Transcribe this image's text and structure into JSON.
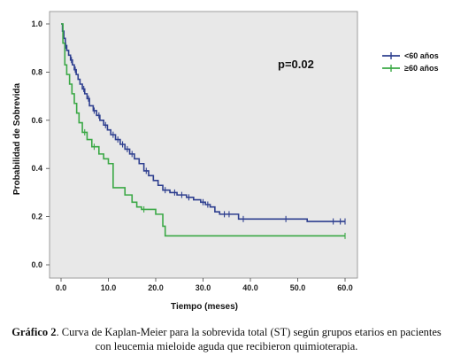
{
  "chart_data": {
    "type": "line",
    "step": true,
    "xlabel": "Tiempo (meses)",
    "ylabel": "Probabilidad de Sobrevida",
    "xlim": [
      0,
      60
    ],
    "ylim": [
      0,
      1
    ],
    "xticks": [
      "0.0",
      "10.0",
      "20.0",
      "30.0",
      "40.0",
      "50.0",
      "60.0"
    ],
    "yticks": [
      "0.0",
      "0.2",
      "0.4",
      "0.6",
      "0.8",
      "1.0"
    ],
    "xtick_values": [
      0,
      10,
      20,
      30,
      40,
      50,
      60
    ],
    "ytick_values": [
      0,
      0.2,
      0.4,
      0.6,
      0.8,
      1.0
    ],
    "annotation": "p=0.02",
    "legend_position": "right",
    "background": "#e8e8e8",
    "series": [
      {
        "name": "<60 años",
        "color": "#2e3f8f",
        "points": [
          [
            0,
            1.0
          ],
          [
            0.3,
            0.97
          ],
          [
            0.6,
            0.94
          ],
          [
            0.9,
            0.91
          ],
          [
            1.2,
            0.89
          ],
          [
            1.6,
            0.87
          ],
          [
            2.0,
            0.85
          ],
          [
            2.4,
            0.83
          ],
          [
            2.8,
            0.81
          ],
          [
            3.2,
            0.79
          ],
          [
            3.6,
            0.77
          ],
          [
            4.0,
            0.75
          ],
          [
            4.5,
            0.73
          ],
          [
            5.0,
            0.71
          ],
          [
            5.5,
            0.69
          ],
          [
            6.0,
            0.66
          ],
          [
            6.8,
            0.64
          ],
          [
            7.5,
            0.62
          ],
          [
            8.2,
            0.6
          ],
          [
            9.0,
            0.58
          ],
          [
            9.8,
            0.56
          ],
          [
            10.5,
            0.54
          ],
          [
            11.5,
            0.52
          ],
          [
            12.5,
            0.5
          ],
          [
            13.5,
            0.48
          ],
          [
            14.5,
            0.46
          ],
          [
            15.5,
            0.44
          ],
          [
            16.5,
            0.42
          ],
          [
            17.5,
            0.39
          ],
          [
            18.5,
            0.37
          ],
          [
            19.5,
            0.35
          ],
          [
            20.5,
            0.33
          ],
          [
            21.5,
            0.31
          ],
          [
            23.0,
            0.3
          ],
          [
            24.5,
            0.29
          ],
          [
            26.5,
            0.28
          ],
          [
            28.0,
            0.27
          ],
          [
            29.5,
            0.26
          ],
          [
            30.5,
            0.25
          ],
          [
            31.5,
            0.24
          ],
          [
            32.5,
            0.22
          ],
          [
            33.5,
            0.21
          ],
          [
            36.0,
            0.21
          ],
          [
            37.5,
            0.19
          ],
          [
            45.0,
            0.19
          ],
          [
            50.0,
            0.19
          ],
          [
            52.0,
            0.18
          ],
          [
            60.0,
            0.18
          ]
        ],
        "censored": [
          [
            1.0,
            0.91
          ],
          [
            2.2,
            0.85
          ],
          [
            3.0,
            0.81
          ],
          [
            4.8,
            0.73
          ],
          [
            5.8,
            0.69
          ],
          [
            7.0,
            0.64
          ],
          [
            8.0,
            0.62
          ],
          [
            9.4,
            0.58
          ],
          [
            11.0,
            0.54
          ],
          [
            12.0,
            0.52
          ],
          [
            13.0,
            0.5
          ],
          [
            14.0,
            0.48
          ],
          [
            15.0,
            0.46
          ],
          [
            18.0,
            0.39
          ],
          [
            22.0,
            0.31
          ],
          [
            24.0,
            0.3
          ],
          [
            25.5,
            0.29
          ],
          [
            27.0,
            0.28
          ],
          [
            30.0,
            0.26
          ],
          [
            31.0,
            0.25
          ],
          [
            34.5,
            0.21
          ],
          [
            35.5,
            0.21
          ],
          [
            38.5,
            0.19
          ],
          [
            47.5,
            0.19
          ],
          [
            57.5,
            0.18
          ],
          [
            59.0,
            0.18
          ],
          [
            60.0,
            0.18
          ]
        ]
      },
      {
        "name": "≥60 años",
        "color": "#3aa845",
        "points": [
          [
            0,
            1.0
          ],
          [
            0.4,
            0.92
          ],
          [
            0.8,
            0.83
          ],
          [
            1.2,
            0.79
          ],
          [
            1.8,
            0.75
          ],
          [
            2.3,
            0.71
          ],
          [
            2.8,
            0.67
          ],
          [
            3.3,
            0.63
          ],
          [
            3.8,
            0.59
          ],
          [
            4.5,
            0.55
          ],
          [
            5.5,
            0.52
          ],
          [
            6.5,
            0.49
          ],
          [
            8.0,
            0.46
          ],
          [
            9.0,
            0.44
          ],
          [
            10.0,
            0.42
          ],
          [
            11.0,
            0.32
          ],
          [
            13.5,
            0.29
          ],
          [
            15.0,
            0.26
          ],
          [
            16.0,
            0.24
          ],
          [
            17.0,
            0.23
          ],
          [
            20.0,
            0.21
          ],
          [
            21.5,
            0.16
          ],
          [
            22.0,
            0.12
          ],
          [
            60.0,
            0.12
          ]
        ],
        "censored": [
          [
            5.0,
            0.55
          ],
          [
            7.0,
            0.49
          ],
          [
            17.5,
            0.23
          ],
          [
            60.0,
            0.12
          ]
        ]
      }
    ]
  },
  "caption": {
    "label": "Gráfico 2",
    "text": ". Curva de Kaplan-Meier para la sobrevida total (ST) según grupos etarios en pacientes con leucemia mieloide aguda que recibieron quimioterapia."
  }
}
